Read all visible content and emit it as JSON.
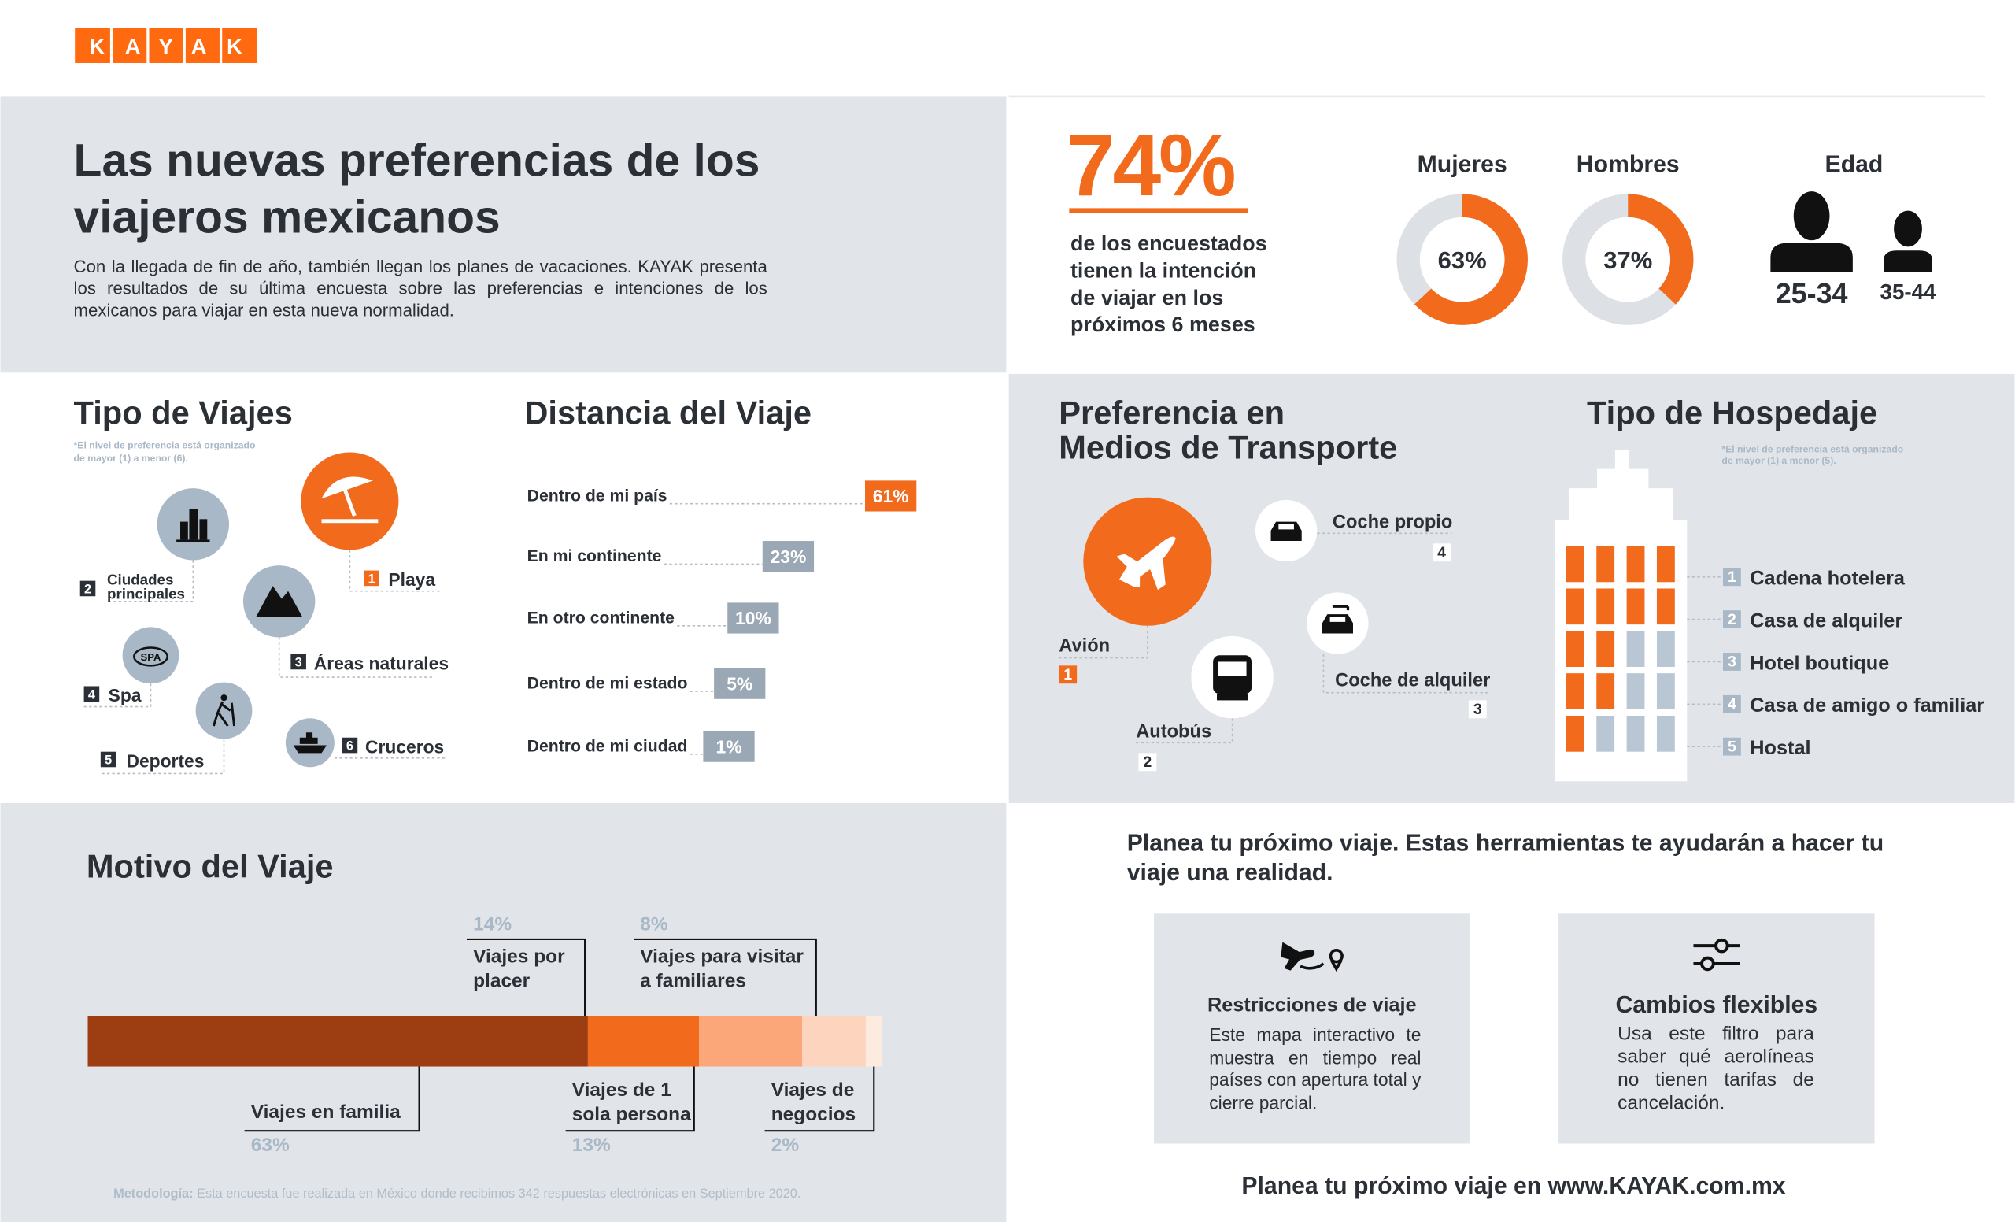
{
  "brand": "KAYAK",
  "header": {
    "title_lines": [
      "Las nuevas preferencias de los",
      "viajeros mexicanos"
    ],
    "intro": "Con la llegada de fin de año, también llegan los planes de vacaciones. KAYAK presenta los resultados de su última encuesta sobre las preferencias e intenciones de los mexicanos para viajar en esta nueva normalidad."
  },
  "intention": {
    "value": 74,
    "value_label": "74%",
    "text_lines": [
      "de los encuestados",
      "tienen la intención",
      "de viajar en los",
      "próximos 6 meses"
    ]
  },
  "gender": {
    "type": "donut",
    "categories": [
      "Mujeres",
      "Hombres"
    ],
    "values": [
      63,
      37
    ],
    "value_labels": [
      "63%",
      "37%"
    ],
    "color": "#f26b1d",
    "track_color": "#dde1e6"
  },
  "age": {
    "title": "Edad",
    "groups": [
      "25-34",
      "35-44"
    ]
  },
  "trip_type": {
    "title": "Tipo de Viajes",
    "note_lines": [
      "*El nivel de preferencia está organizado",
      "de mayor (1) a menor (6)."
    ],
    "items": [
      {
        "rank": 1,
        "label_lines": [
          "Playa"
        ]
      },
      {
        "rank": 2,
        "label_lines": [
          "Ciudades",
          "principales"
        ]
      },
      {
        "rank": 3,
        "label_lines": [
          "Áreas naturales"
        ]
      },
      {
        "rank": 4,
        "label_lines": [
          "Spa"
        ],
        "icon_text": "SPA"
      },
      {
        "rank": 5,
        "label_lines": [
          "Deportes"
        ]
      },
      {
        "rank": 6,
        "label_lines": [
          "Cruceros"
        ]
      }
    ]
  },
  "distance": {
    "type": "bar",
    "title": "Distancia del Viaje",
    "categories": [
      "Dentro de mi país",
      "En mi continente",
      "En otro continente",
      "Dentro de mi estado",
      "Dentro de mi ciudad"
    ],
    "values": [
      61,
      23,
      10,
      5,
      1
    ],
    "value_labels": [
      "61%",
      "23%",
      "10%",
      "5%",
      "1%"
    ],
    "colors": [
      "#f26b1d",
      "#9aa8b6",
      "#9aa8b6",
      "#9aa8b6",
      "#9aa8b6"
    ]
  },
  "transport": {
    "title_lines": [
      "Preferencia en",
      "Medios de Transporte"
    ],
    "items": [
      {
        "rank": 1,
        "label": "Avión"
      },
      {
        "rank": 2,
        "label": "Autobús"
      },
      {
        "rank": 3,
        "label": "Coche de alquiler"
      },
      {
        "rank": 4,
        "label": "Coche propio"
      }
    ]
  },
  "lodging": {
    "title": "Tipo de Hospedaje",
    "note_lines": [
      "*El nivel de preferencia está organizado",
      "de mayor (1) a menor (5)."
    ],
    "items": [
      {
        "rank": 1,
        "label": "Cadena hotelera"
      },
      {
        "rank": 2,
        "label": "Casa de alquiler"
      },
      {
        "rank": 3,
        "label": "Hotel boutique"
      },
      {
        "rank": 4,
        "label": "Casa de amigo o familiar"
      },
      {
        "rank": 5,
        "label": "Hostal"
      }
    ]
  },
  "motive": {
    "type": "stacked-bar",
    "title": "Motivo del Viaje",
    "segments": [
      {
        "label_lines": [
          "Viajes en familia"
        ],
        "value": 63,
        "value_label": "63%",
        "color": "#9c3d12"
      },
      {
        "label_lines": [
          "Viajes por",
          "placer"
        ],
        "value": 14,
        "value_label": "14%",
        "color": "#f26b1d"
      },
      {
        "label_lines": [
          "Viajes de 1",
          "sola persona"
        ],
        "value": 13,
        "value_label": "13%",
        "color": "#fba77a"
      },
      {
        "label_lines": [
          "Viajes para visitar",
          "a familiares"
        ],
        "value": 8,
        "value_label": "8%",
        "color": "#fdd4bd"
      },
      {
        "label_lines": [
          "Viajes de",
          "negocios"
        ],
        "value": 2,
        "value_label": "2%",
        "color": "#fdebe0"
      }
    ]
  },
  "methodology": {
    "label": "Metodología:",
    "text": "Esta encuesta fue realizada en México donde recibimos 342 respuestas electrónicas en Septiembre 2020."
  },
  "tools": {
    "heading_lines": [
      "Planea tu próximo viaje. Estas herramientas te ayudarán a hacer tu",
      "viaje una realidad."
    ],
    "cards": [
      {
        "title": "Restricciones de viaje",
        "text": "Este mapa interactivo te muestra en tiempo real países con apertura total y cierre parcial."
      },
      {
        "title": "Cambios flexibles",
        "text": "Usa este filtro para saber qué aerolíneas no tienen tarifas de cancelación."
      }
    ],
    "footer": "Planea tu próximo viaje en www.KAYAK.com.mx"
  }
}
